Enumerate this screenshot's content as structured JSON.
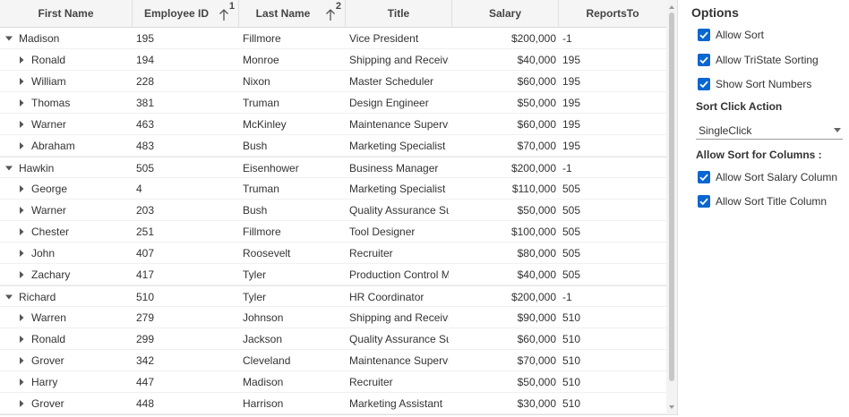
{
  "grid": {
    "columns": [
      {
        "label": "First Name"
      },
      {
        "label": "Employee ID",
        "sort_number": "1"
      },
      {
        "label": "Last Name",
        "sort_number": "2"
      },
      {
        "label": "Title"
      },
      {
        "label": "Salary"
      },
      {
        "label": "ReportsTo"
      }
    ],
    "rows": [
      {
        "level": 0,
        "expanded": true,
        "first": "Madison",
        "id": "195",
        "last": "Fillmore",
        "title": "Vice President",
        "salary": "$200,000",
        "reports": "-1"
      },
      {
        "level": 1,
        "expanded": false,
        "first": "Ronald",
        "id": "194",
        "last": "Monroe",
        "title": "Shipping and Receivin",
        "salary": "$40,000",
        "reports": "195"
      },
      {
        "level": 1,
        "expanded": false,
        "first": "William",
        "id": "228",
        "last": "Nixon",
        "title": "Master Scheduler",
        "salary": "$60,000",
        "reports": "195"
      },
      {
        "level": 1,
        "expanded": false,
        "first": "Thomas",
        "id": "381",
        "last": "Truman",
        "title": "Design Engineer",
        "salary": "$50,000",
        "reports": "195"
      },
      {
        "level": 1,
        "expanded": false,
        "first": "Warner",
        "id": "463",
        "last": "McKinley",
        "title": "Maintenance Supervis",
        "salary": "$60,000",
        "reports": "195"
      },
      {
        "level": 1,
        "expanded": false,
        "first": "Abraham",
        "id": "483",
        "last": "Bush",
        "title": "Marketing Specialist",
        "salary": "$70,000",
        "reports": "195"
      },
      {
        "level": 0,
        "expanded": true,
        "first": "Hawkin",
        "id": "505",
        "last": "Eisenhower",
        "title": "Business Manager",
        "salary": "$200,000",
        "reports": "-1"
      },
      {
        "level": 1,
        "expanded": false,
        "first": "George",
        "id": "4",
        "last": "Truman",
        "title": "Marketing Specialist",
        "salary": "$110,000",
        "reports": "505"
      },
      {
        "level": 1,
        "expanded": false,
        "first": "Warner",
        "id": "203",
        "last": "Bush",
        "title": "Quality Assurance Sup",
        "salary": "$50,000",
        "reports": "505"
      },
      {
        "level": 1,
        "expanded": false,
        "first": "Chester",
        "id": "251",
        "last": "Fillmore",
        "title": "Tool Designer",
        "salary": "$100,000",
        "reports": "505"
      },
      {
        "level": 1,
        "expanded": false,
        "first": "John",
        "id": "407",
        "last": "Roosevelt",
        "title": "Recruiter",
        "salary": "$80,000",
        "reports": "505"
      },
      {
        "level": 1,
        "expanded": false,
        "first": "Zachary",
        "id": "417",
        "last": "Tyler",
        "title": "Production Control M",
        "salary": "$40,000",
        "reports": "505"
      },
      {
        "level": 0,
        "expanded": true,
        "first": "Richard",
        "id": "510",
        "last": "Tyler",
        "title": "HR Coordinator",
        "salary": "$200,000",
        "reports": "-1"
      },
      {
        "level": 1,
        "expanded": false,
        "first": "Warren",
        "id": "279",
        "last": "Johnson",
        "title": "Shipping and Receivin",
        "salary": "$90,000",
        "reports": "510"
      },
      {
        "level": 1,
        "expanded": false,
        "first": "Ronald",
        "id": "299",
        "last": "Jackson",
        "title": "Quality Assurance Sup",
        "salary": "$60,000",
        "reports": "510"
      },
      {
        "level": 1,
        "expanded": false,
        "first": "Grover",
        "id": "342",
        "last": "Cleveland",
        "title": "Maintenance Supervis",
        "salary": "$70,000",
        "reports": "510"
      },
      {
        "level": 1,
        "expanded": false,
        "first": "Harry",
        "id": "447",
        "last": "Madison",
        "title": "Recruiter",
        "salary": "$50,000",
        "reports": "510"
      },
      {
        "level": 1,
        "expanded": false,
        "first": "Grover",
        "id": "448",
        "last": "Harrison",
        "title": "Marketing Assistant",
        "salary": "$30,000",
        "reports": "510"
      }
    ]
  },
  "options": {
    "title": "Options",
    "allow_sort": {
      "label": "Allow Sort",
      "checked": true
    },
    "allow_tristate": {
      "label": "Allow TriState Sorting",
      "checked": true
    },
    "show_sort_numbers": {
      "label": "Show Sort Numbers",
      "checked": true
    },
    "sort_click_action_label": "Sort Click Action",
    "sort_click_action_value": "SingleClick",
    "allow_sort_columns_label": "Allow Sort for Columns :",
    "allow_sort_salary": {
      "label": "Allow Sort Salary Column",
      "checked": true
    },
    "allow_sort_title": {
      "label": "Allow Sort Title Column",
      "checked": true
    }
  },
  "colors": {
    "accent": "#0a66d0",
    "header_bg": "#f5f5f5",
    "grid_line": "#e0e0e0"
  }
}
